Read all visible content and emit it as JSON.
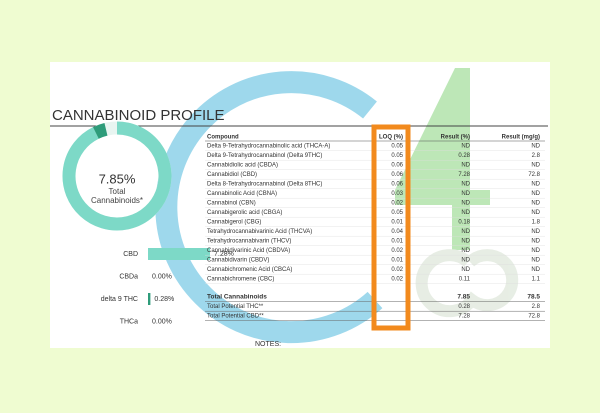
{
  "title": "CANNABINOID PROFILE",
  "donut": {
    "total": 7.85,
    "total_label": "7.85%",
    "caption": "Total Cannabinoids*"
  },
  "legend": [
    {
      "name": "CBD",
      "value": 7.28,
      "label": "7.28%",
      "color": "#7dd9c7"
    },
    {
      "name": "CBDa",
      "value": 0,
      "label": "0.00%",
      "color": "#2e9c7a"
    },
    {
      "name": "delta 9 THC",
      "value": 0.28,
      "label": "0.28%",
      "color": "#2e9c7a"
    },
    {
      "name": "THCa",
      "value": 0,
      "label": "0.00%",
      "color": "#1f6b52"
    }
  ],
  "table": {
    "header": [
      "Compound",
      "LOQ (%)",
      "Result (%)",
      "Result (mg/g)"
    ],
    "rows": [
      [
        "Delta 9-Tetrahydrocannabinolic acid (THCA-A)",
        "0.05",
        "ND",
        "ND"
      ],
      [
        "Delta 9-Tetrahydrocannabinol (Delta 9THC)",
        "0.05",
        "0.28",
        "2.8"
      ],
      [
        "Cannabidiolic acid (CBDA)",
        "0.06",
        "ND",
        "ND"
      ],
      [
        "Cannabidiol (CBD)",
        "0.06",
        "7.28",
        "72.8"
      ],
      [
        "Delta 8-Tetrahydrocannabinol (Delta 8THC)",
        "0.06",
        "ND",
        "ND"
      ],
      [
        "Cannabinolic Acid (CBNA)",
        "0.03",
        "ND",
        "ND"
      ],
      [
        "Cannabinol (CBN)",
        "0.02",
        "ND",
        "ND"
      ],
      [
        "Cannabigerolic acid (CBGA)",
        "0.05",
        "ND",
        "ND"
      ],
      [
        "Cannabigerol (CBG)",
        "0.01",
        "0.18",
        "1.8"
      ],
      [
        "Tetrahydrocannabivarinic Acid (THCVA)",
        "0.04",
        "ND",
        "ND"
      ],
      [
        "Tetrahydrocannabivarin (THCV)",
        "0.01",
        "ND",
        "ND"
      ],
      [
        "Cannabidivarinic Acid (CBDVA)",
        "0.02",
        "ND",
        "ND"
      ],
      [
        "Cannabidivarin (CBDV)",
        "0.01",
        "ND",
        "ND"
      ],
      [
        "Cannabichromenic Acid (CBCA)",
        "0.02",
        "ND",
        "ND"
      ],
      [
        "Cannabichromene (CBC)",
        "0.02",
        "0.11",
        "1.1"
      ]
    ],
    "totals": [
      [
        "Total Cannabinoids",
        "7.85",
        "78.5"
      ],
      [
        "Total Potential THC**",
        "0.28",
        "2.8"
      ],
      [
        "Total Potential CBD**",
        "7.28",
        "72.8"
      ]
    ]
  },
  "notes": "NOTES:"
}
